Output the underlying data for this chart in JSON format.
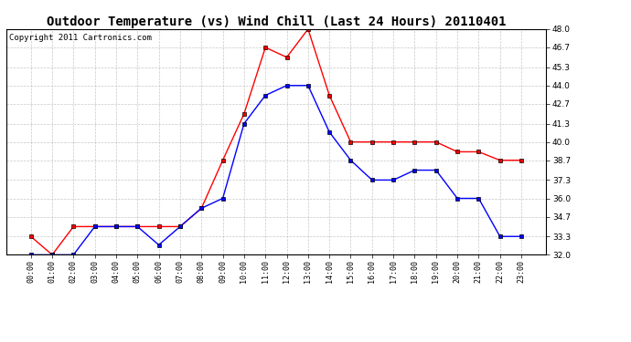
{
  "title": "Outdoor Temperature (vs) Wind Chill (Last 24 Hours) 20110401",
  "copyright": "Copyright 2011 Cartronics.com",
  "x_labels": [
    "00:00",
    "01:00",
    "02:00",
    "03:00",
    "04:00",
    "05:00",
    "06:00",
    "07:00",
    "08:00",
    "09:00",
    "10:00",
    "11:00",
    "12:00",
    "13:00",
    "14:00",
    "15:00",
    "16:00",
    "17:00",
    "18:00",
    "19:00",
    "20:00",
    "21:00",
    "22:00",
    "23:00"
  ],
  "temp_red": [
    33.3,
    32.0,
    34.0,
    34.0,
    34.0,
    34.0,
    34.0,
    34.0,
    35.3,
    38.7,
    42.0,
    46.7,
    46.0,
    48.0,
    43.3,
    40.0,
    40.0,
    40.0,
    40.0,
    40.0,
    39.3,
    39.3,
    38.7,
    38.7
  ],
  "temp_blue": [
    32.0,
    32.0,
    32.0,
    34.0,
    34.0,
    34.0,
    32.7,
    34.0,
    35.3,
    36.0,
    41.3,
    43.3,
    44.0,
    44.0,
    40.7,
    38.7,
    37.3,
    37.3,
    38.0,
    38.0,
    36.0,
    36.0,
    33.3,
    33.3
  ],
  "ylim_min": 32.0,
  "ylim_max": 48.0,
  "yticks": [
    32.0,
    33.3,
    34.7,
    36.0,
    37.3,
    38.7,
    40.0,
    41.3,
    42.7,
    44.0,
    45.3,
    46.7,
    48.0
  ],
  "red_color": "#ff0000",
  "blue_color": "#0000ff",
  "bg_color": "#ffffff",
  "grid_color": "#b0b0b0",
  "title_fontsize": 10,
  "copyright_fontsize": 6.5
}
